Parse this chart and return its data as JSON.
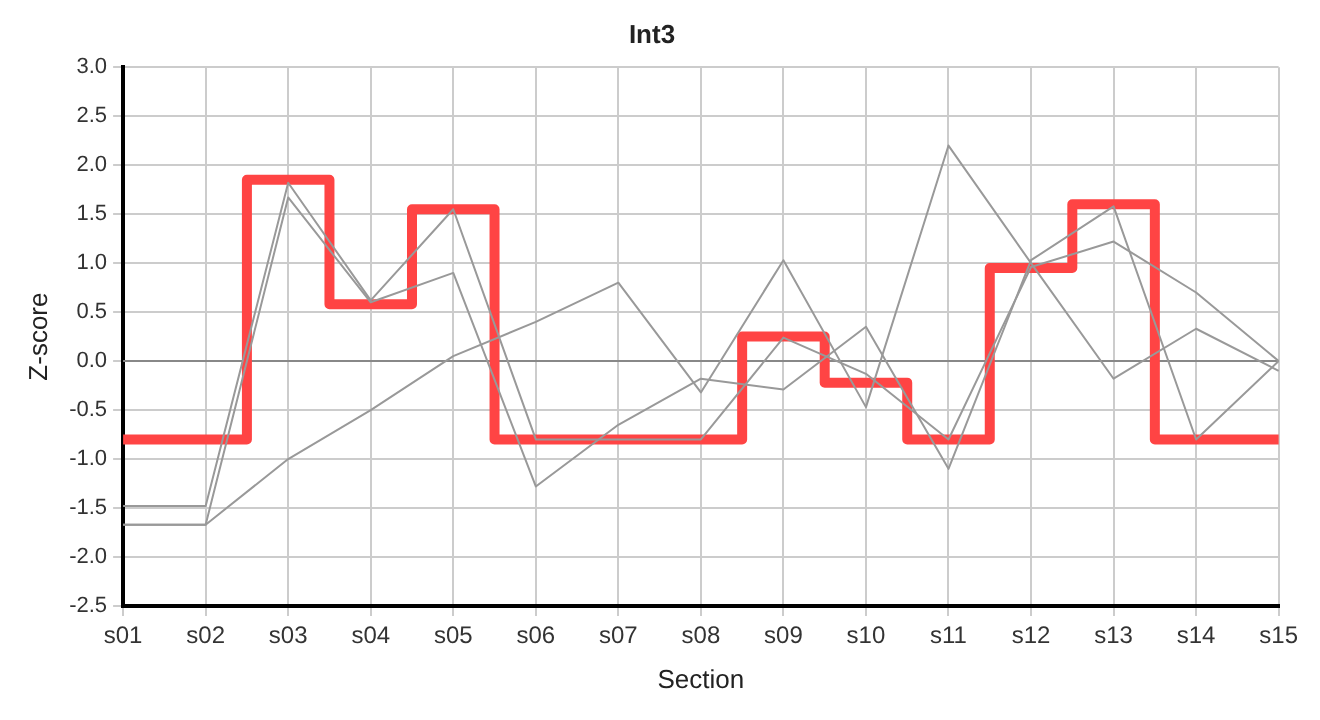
{
  "chart_data": {
    "type": "line",
    "title": "Int3",
    "xlabel": "Section",
    "ylabel": "Z-score",
    "categories": [
      "s01",
      "s02",
      "s03",
      "s04",
      "s05",
      "s06",
      "s07",
      "s08",
      "s09",
      "s10",
      "s11",
      "s12",
      "s13",
      "s14",
      "s15"
    ],
    "series": [
      {
        "color": "#999999",
        "values": [
          -1.48,
          -1.48,
          1.82,
          0.62,
          1.55,
          -0.8,
          -0.8,
          -0.8,
          0.24,
          -0.13,
          -0.8,
          0.96,
          1.22,
          0.7,
          0
        ]
      },
      {
        "color": "#999999",
        "values": [
          -1.67,
          -1.67,
          1.67,
          0.6,
          0.9,
          -1.28,
          -0.65,
          -0.18,
          -0.29,
          0.35,
          -1.1,
          1.03,
          1.58,
          -0.8,
          0
        ]
      },
      {
        "color": "#999999",
        "values": [
          -1.67,
          -1.67,
          -1.0,
          -0.5,
          0.05,
          0.4,
          0.8,
          -0.32,
          1.03,
          -0.47,
          2.2,
          1.0,
          -0.18,
          0.33,
          -0.1
        ]
      },
      {
        "type": "step",
        "color": "#ff4444",
        "values": [
          -0.8,
          -0.8,
          1.85,
          0.58,
          1.55,
          -0.8,
          -0.8,
          -0.8,
          0.25,
          -0.22,
          -0.8,
          0.95,
          1.6,
          -0.8,
          -0.8
        ]
      }
    ],
    "ylim": [
      -2.5,
      3
    ],
    "yticks": [
      {
        "value": -2.5,
        "label": "-2.5"
      },
      {
        "value": -2,
        "label": "-2.0"
      },
      {
        "value": -1.5,
        "label": "-1.5"
      },
      {
        "value": -1,
        "label": "-1.0"
      },
      {
        "value": -0.5,
        "label": "-0.5"
      },
      {
        "value": 0,
        "label": "0.0"
      },
      {
        "value": 0.5,
        "label": "0.5"
      },
      {
        "value": 1,
        "label": "1.0"
      },
      {
        "value": 1.5,
        "label": "1.5"
      },
      {
        "value": 2,
        "label": "2.0"
      },
      {
        "value": 2.5,
        "label": "2.5"
      },
      {
        "value": 3,
        "label": "3.0"
      }
    ],
    "ref_lines": [
      {
        "axis": "y",
        "value": 0,
        "color": "#888888"
      }
    ],
    "grid": true,
    "legend": false,
    "marker": "none",
    "line_style": "solid"
  }
}
